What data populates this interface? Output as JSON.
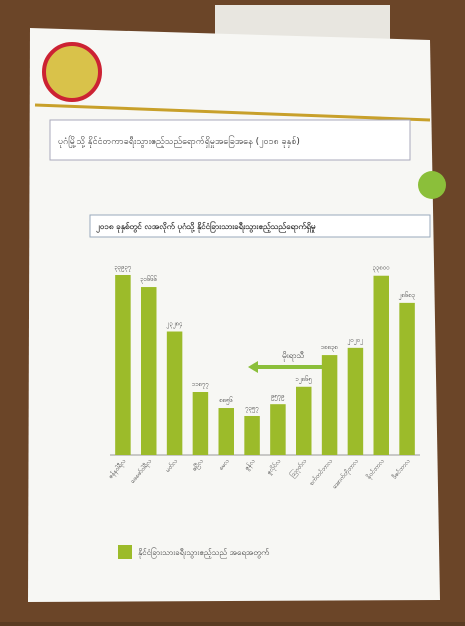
{
  "chart_data": {
    "type": "bar",
    "header": "ပုဂံမြို့သို့ နိုင်ငံတကာခရီးသွားဧည့်သည်ရောက်ရှိမှုအခြေအနေ (၂၀၁၈ ခုနှစ်)",
    "title": "၂၀၁၈ ခုနှစ်တွင် လအလိုက် ပုဂံသို့ နိုင်ငံခြားသားခရီးသွားဧည့်သည်ရောက်ရှိမှု",
    "annotation": "မိုးရာသီ",
    "categories": [
      "ဇန်နဝါရီလ",
      "ဖေဖော်ဝါရီလ",
      "မတ်လ",
      "ဧပြီလ",
      "မေလ",
      "ဇွန်လ",
      "ဇူလိုင်လ",
      "ဩဂုတ်လ",
      "စက်တင်ဘာလ",
      "အောက်တိုဘာလ",
      "နိုဝင်ဘာလ",
      "ဒီဇင်ဘာလ"
    ],
    "series": [
      {
        "name": "နိုင်ငံခြားသားခရီးသွားဧည့်သည် အရေအတွက်",
        "color": "#9cbb2a",
        "values": [
          33937,
          31666,
          23284,
          11877,
          8856,
          7357,
          9579,
          12865,
          18838,
          20202,
          33800,
          28683
        ],
        "value_labels": [
          "၃၃၉၃၇",
          "၃၁၆၆၆",
          "၂၃၂၈၄",
          "၁၁၈၇၇",
          "၈၈၅၆",
          "၇၃၅၇",
          "၉၅၇၉",
          "၁၂၈၆၅",
          "၁၈၈၃၈",
          "၂၀၂၀၂",
          "၃၃၈၀၀",
          "၂၈၆၈၃"
        ]
      }
    ]
  }
}
